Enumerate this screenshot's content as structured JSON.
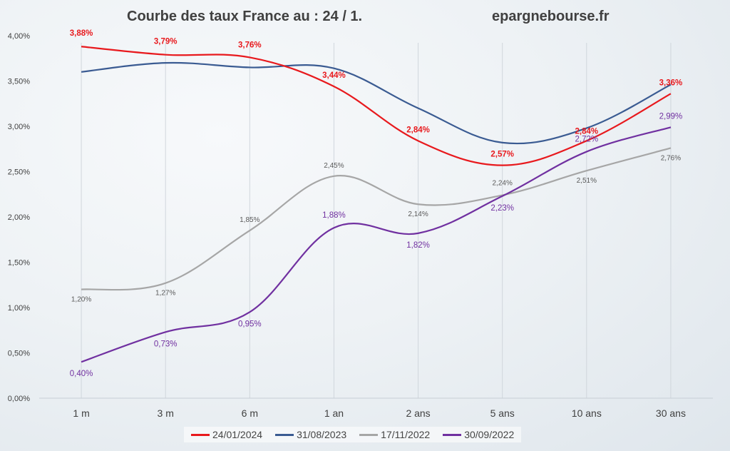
{
  "header": {
    "title": "Courbe des taux France au : 24 / 1.",
    "site": "epargnebourse.fr"
  },
  "chart_data": {
    "type": "line",
    "title": "Courbe des taux France au : 24 / 1.",
    "xlabel": "",
    "ylabel": "",
    "categories": [
      "1 m",
      "3 m",
      "6 m",
      "1 an",
      "2 ans",
      "5 ans",
      "10 ans",
      "30 ans"
    ],
    "y_ticks": [
      "0,00%",
      "0,50%",
      "1,00%",
      "1,50%",
      "2,00%",
      "2,50%",
      "3,00%",
      "3,50%",
      "4,00%"
    ],
    "ylim": [
      0,
      4
    ],
    "grid": "vertical",
    "legend": "bottom",
    "series": [
      {
        "name": "24/01/2024",
        "color": "#e8191d",
        "values": [
          3.88,
          3.79,
          3.76,
          3.44,
          2.84,
          2.57,
          2.84,
          3.36
        ],
        "labels": [
          "3,88%",
          "3,79%",
          "3,76%",
          "3,44%",
          "2,84%",
          "2,57%",
          "2,84%",
          "3,36%"
        ],
        "label_bold": true
      },
      {
        "name": "31/08/2023",
        "color": "#3a5b92",
        "values": [
          3.6,
          3.7,
          3.65,
          3.64,
          3.2,
          2.82,
          2.98,
          3.46
        ],
        "labels": [],
        "label_bold": false
      },
      {
        "name": "17/11/2022",
        "color": "#a6a6a6",
        "values": [
          1.2,
          1.27,
          1.85,
          2.45,
          2.14,
          2.24,
          2.51,
          2.76
        ],
        "labels": [
          "1,20%",
          "1,27%",
          "1,85%",
          "2,45%",
          "2,14%",
          "2,24%",
          "2,51%",
          "2,76%"
        ],
        "label_color": "#595959",
        "label_bold": false
      },
      {
        "name": "30/09/2022",
        "color": "#7030a0",
        "values": [
          0.4,
          0.73,
          0.95,
          1.88,
          1.82,
          2.23,
          2.72,
          2.99
        ],
        "labels": [
          "0,40%",
          "0,73%",
          "0,95%",
          "1,88%",
          "1,82%",
          "2,23%",
          "2,72%",
          "2,99%"
        ],
        "label_bold": false
      }
    ]
  }
}
